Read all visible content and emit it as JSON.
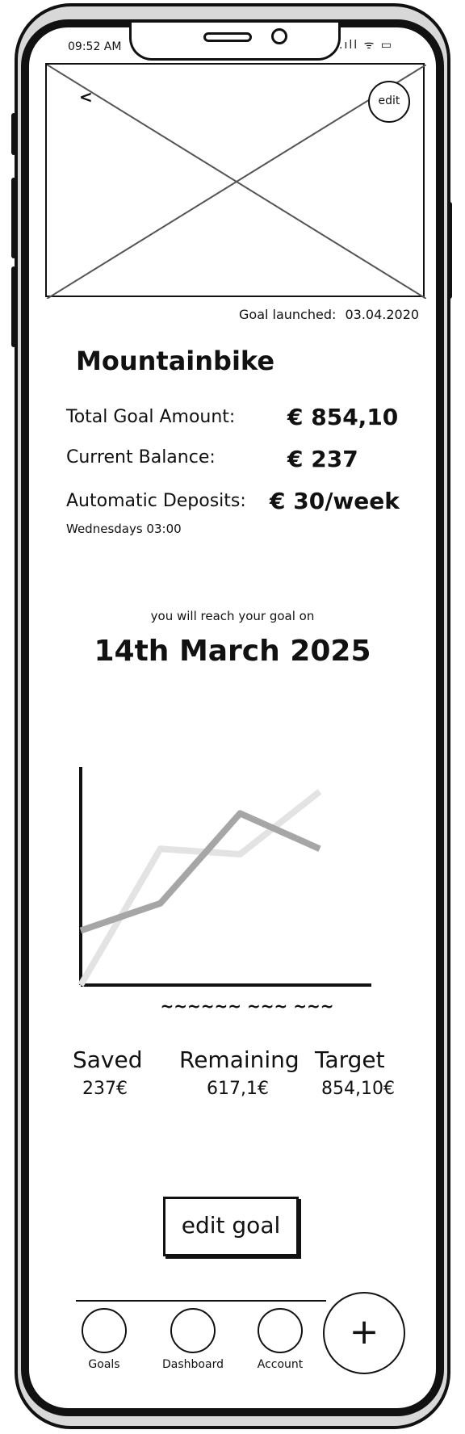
{
  "status": {
    "time": "09:52 AM",
    "icons": ".ıll ᯤ ▭"
  },
  "header": {
    "back_symbol": "<",
    "edit_label": "edit",
    "launched_label": "Goal launched:",
    "launched_date": "03.04.2020"
  },
  "goal": {
    "title": "Mountainbike",
    "total_label": "Total Goal Amount:",
    "total_value": "€ 854,10",
    "balance_label": "Current Balance:",
    "balance_value": "€ 237",
    "deposits_label": "Automatic Deposits:",
    "deposits_value": "€ 30/week",
    "deposits_schedule": "Wednesdays 03:00",
    "reach_text": "you will reach your goal on",
    "reach_date": "14th March 2025"
  },
  "chart_data": {
    "type": "line",
    "x": [
      0,
      1,
      2,
      3
    ],
    "series": [
      {
        "values": [
          2.0,
          3.0,
          6.3,
          5.0
        ],
        "color": "#a6a6a6"
      },
      {
        "values": [
          0.0,
          5.0,
          4.8,
          7.1
        ],
        "color": "#e3e3e3"
      }
    ],
    "xlabel": "~~~~~~ ~~~ ~~~",
    "ylim": [
      0,
      8
    ]
  },
  "stats": {
    "saved_label": "Saved",
    "saved_value": "237€",
    "remaining_label": "Remaining",
    "remaining_value": "617,1€",
    "target_label": "Target",
    "target_value": "854,10€"
  },
  "actions": {
    "edit_goal": "edit goal"
  },
  "nav": {
    "items": [
      "Goals",
      "Dashboard",
      "Account"
    ],
    "fab": "+"
  }
}
